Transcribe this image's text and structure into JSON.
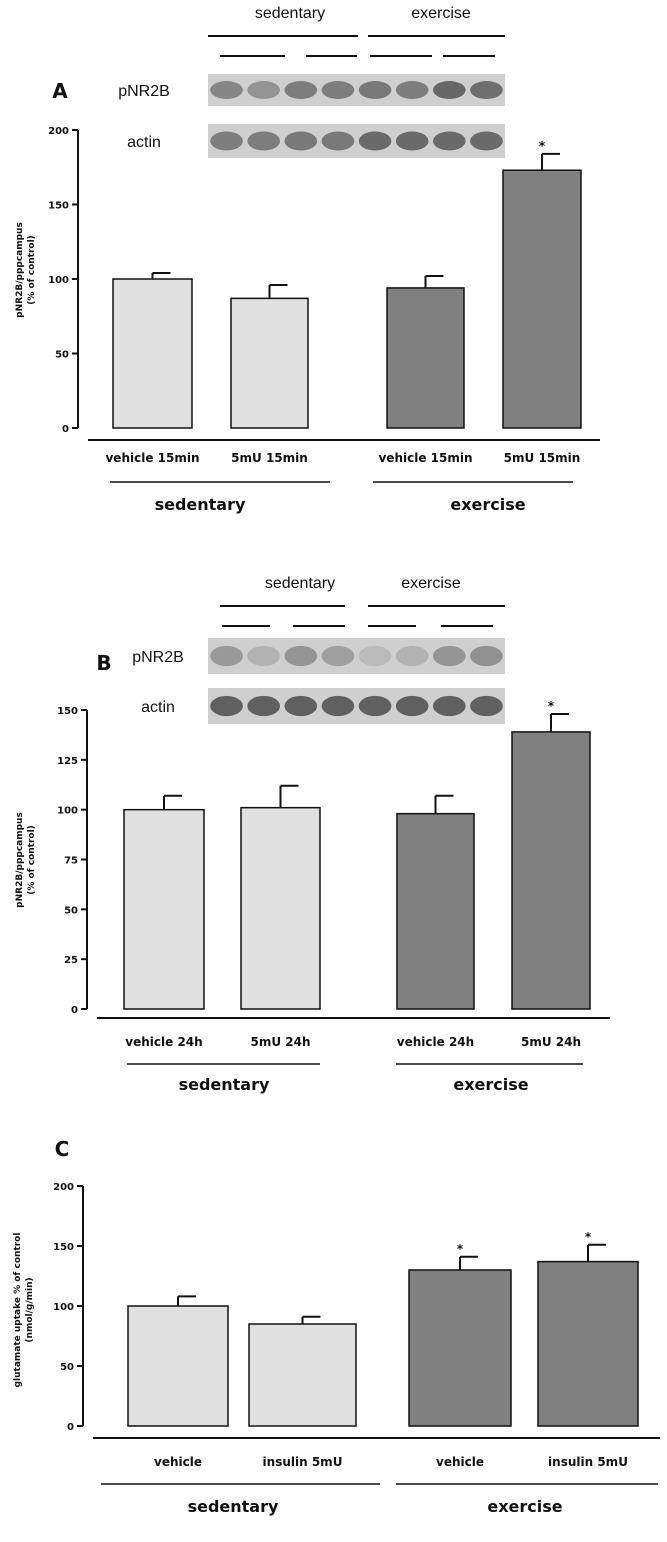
{
  "colors": {
    "sedentary": "#e0e0e0",
    "exercise": "#808080",
    "axis": "#111111",
    "band": "#2a2a2a",
    "blot_bg": "#cfcfcf"
  },
  "chart_data": [
    {
      "type": "bar",
      "panel": "A",
      "blot_labels": {
        "row1": "pNR2B",
        "row2": "actin",
        "group1": "sedentary",
        "group2": "exercise"
      },
      "categories": [
        "vehicle 15min",
        "5mU 15min",
        "vehicle 15min",
        "5mU 15min"
      ],
      "values": [
        100,
        87,
        94,
        173
      ],
      "errors": [
        4,
        9,
        8,
        11
      ],
      "significant": [
        false,
        false,
        false,
        true
      ],
      "group_of_bar": [
        "sedentary",
        "sedentary",
        "exercise",
        "exercise"
      ],
      "groups": [
        "sedentary",
        "exercise"
      ],
      "ylabel": "pNR2B/pppcampus\n(% of control)",
      "ylim": [
        0,
        200
      ],
      "yticks": [
        0,
        50,
        100,
        150,
        200
      ],
      "ytick_labels": [
        "0",
        "50",
        "100",
        "150",
        "200"
      ],
      "significance_marker": "*"
    },
    {
      "type": "bar",
      "panel": "B",
      "blot_labels": {
        "row1": "pNR2B",
        "row2": "actin",
        "group1": "sedentary",
        "group2": "exercise"
      },
      "categories": [
        "vehicle 24h",
        "5mU 24h",
        "vehicle 24h",
        "5mU 24h"
      ],
      "values": [
        100,
        101,
        98,
        139
      ],
      "errors": [
        7,
        11,
        9,
        9
      ],
      "significant": [
        false,
        false,
        false,
        true
      ],
      "group_of_bar": [
        "sedentary",
        "sedentary",
        "exercise",
        "exercise"
      ],
      "groups": [
        "sedentary",
        "exercise"
      ],
      "ylabel": "pNR2B/pppcampus\n(% of control)",
      "ylim": [
        0,
        150
      ],
      "yticks": [
        0,
        25,
        50,
        75,
        100,
        125,
        150
      ],
      "ytick_labels": [
        "0",
        "25",
        "50",
        "75",
        "100",
        "125",
        "150"
      ],
      "significance_marker": "*"
    },
    {
      "type": "bar",
      "panel": "C",
      "categories": [
        "vehicle",
        "insulin 5mU",
        "vehicle",
        "insulin 5mU"
      ],
      "values": [
        100,
        85,
        130,
        137
      ],
      "errors": [
        8,
        6,
        11,
        14
      ],
      "significant": [
        false,
        false,
        true,
        true
      ],
      "group_of_bar": [
        "sedentary",
        "sedentary",
        "exercise",
        "exercise"
      ],
      "groups": [
        "sedentary",
        "exercise"
      ],
      "ylabel": "glutamate uptake % of control\n(nmol/g/min)",
      "ylim": [
        0,
        200
      ],
      "yticks": [
        0,
        50,
        100,
        150,
        200
      ],
      "ytick_labels": [
        "0",
        "50",
        "100",
        "150",
        "200"
      ],
      "significance_marker": "*"
    }
  ]
}
